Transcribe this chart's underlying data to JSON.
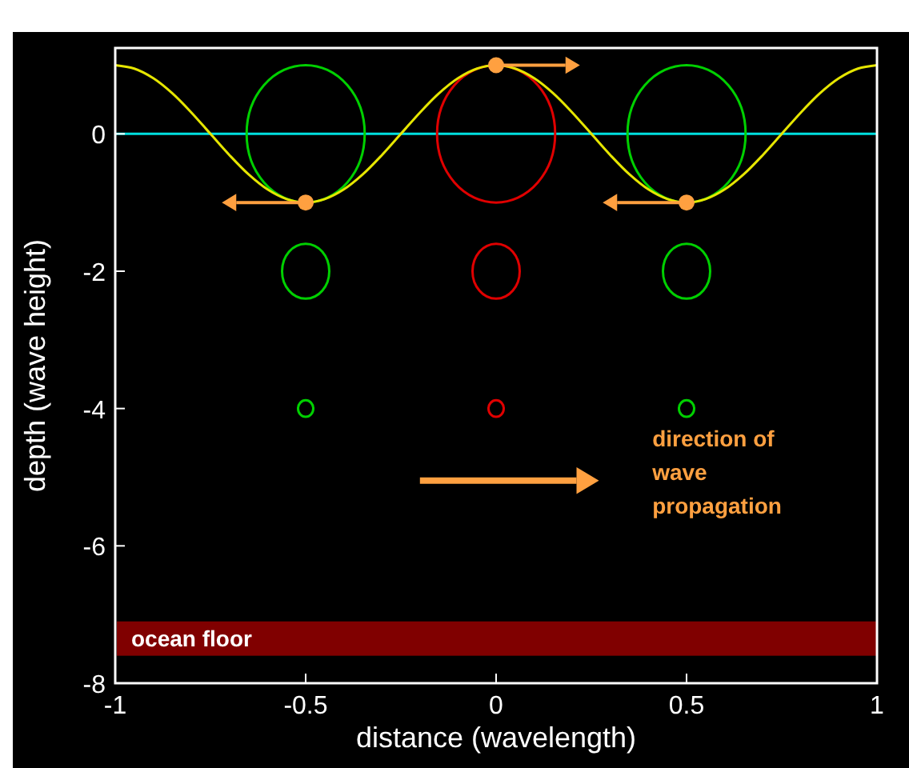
{
  "chart_data": {
    "type": "line",
    "xlabel": "distance (wavelength)",
    "ylabel": "depth (wave height)",
    "xlim": [
      -1,
      1
    ],
    "ylim": [
      -8,
      1.25
    ],
    "xticks": [
      -1,
      -0.5,
      0,
      0.5,
      1
    ],
    "yticks": [
      -8,
      -6,
      -4,
      -2,
      0
    ],
    "grid": false,
    "marker": "none",
    "series": [
      {
        "color": "#e6e600",
        "x": [
          -1,
          -0.95,
          -0.9,
          -0.85,
          -0.8,
          -0.75,
          -0.7,
          -0.65,
          -0.6,
          -0.55,
          -0.5,
          -0.45,
          -0.4,
          -0.35,
          -0.3,
          -0.25,
          -0.2,
          -0.15,
          -0.1,
          -0.05,
          0,
          0.05,
          0.1,
          0.15,
          0.2,
          0.25,
          0.3,
          0.35,
          0.4,
          0.45,
          0.5,
          0.55,
          0.6,
          0.65,
          0.7,
          0.75,
          0.8,
          0.85,
          0.9,
          0.95,
          1
        ],
        "values": [
          1,
          0.95,
          0.81,
          0.59,
          0.31,
          0,
          -0.31,
          -0.59,
          -0.81,
          -0.95,
          -1,
          -0.95,
          -0.81,
          -0.59,
          -0.31,
          0,
          0.31,
          0.59,
          0.81,
          0.95,
          1,
          0.95,
          0.81,
          0.59,
          0.31,
          0,
          -0.31,
          -0.59,
          -0.81,
          -0.95,
          -1,
          -0.95,
          -0.81,
          -0.59,
          -0.31,
          0,
          0.31,
          0.59,
          0.81,
          0.95,
          1
        ]
      },
      {
        "type": "scatter",
        "color": "#ffa040",
        "marker": "circle",
        "x": [
          0,
          -0.5,
          0.5
        ],
        "values": [
          1,
          -1,
          -1
        ]
      }
    ],
    "ref_lines": [
      {
        "axis": "y",
        "value": 0,
        "color": "#00e0e0"
      }
    ],
    "bands": [
      {
        "axis": "y",
        "from": -7.6,
        "to": -7.1,
        "label": "ocean floor",
        "color": "#800000"
      }
    ],
    "annotations": [
      "direction of wave propagation"
    ]
  }
}
